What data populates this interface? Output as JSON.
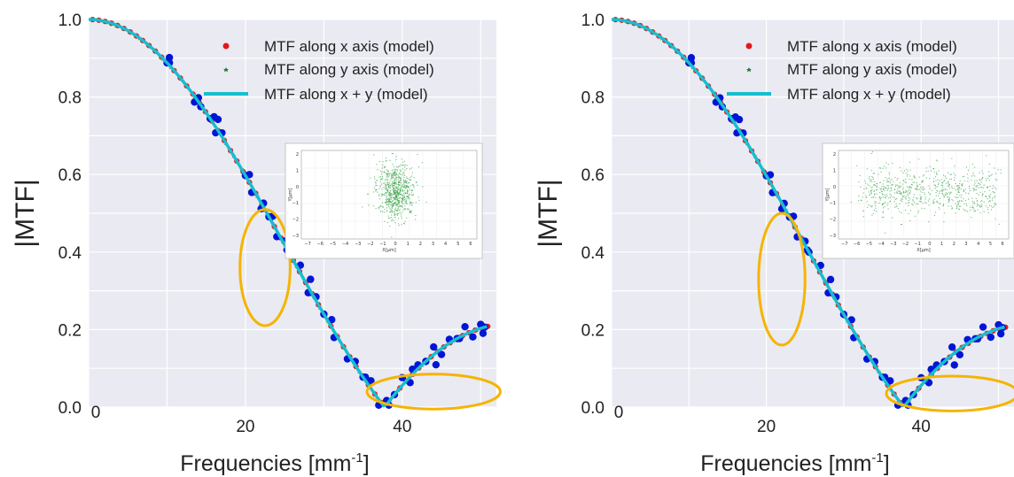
{
  "chart_data": [
    {
      "type": "scatter",
      "title": "",
      "xlabel": "Frequencies [mm",
      "xlabel_sup": "-1",
      "xlabel_end": "]",
      "ylabel": "|MTF|",
      "xlim": [
        0,
        52
      ],
      "ylim": [
        0,
        1.0
      ],
      "xticks": [
        "0",
        "20",
        "40"
      ],
      "yticks": [
        "0.0",
        "0.2",
        "0.4",
        "0.6",
        "0.8",
        "1.0"
      ],
      "grid": true,
      "legend_position": "top-right",
      "legend": [
        "MTF along x axis (model)",
        "MTF along y axis (model)",
        "MTF along x + y (model)"
      ],
      "colors": {
        "x_model": "#e31a1c",
        "y_model": "#1b7a2e",
        "xy_model": "#17becf",
        "measured": "#0015d6",
        "highlight": "#f5b400",
        "background": "#eaeaf2"
      },
      "series": [
        {
          "name": "MTF along x axis (model)",
          "kind": "dots",
          "sigma_x": 0.4,
          "sigma_y": 0.4,
          "mode": "x"
        },
        {
          "name": "MTF along y axis (model)",
          "kind": "stars",
          "sigma_x": 0.4,
          "sigma_y": 0.4,
          "mode": "y"
        },
        {
          "name": "MTF along x + y (model)",
          "kind": "line",
          "sigma_x": 0.4,
          "sigma_y": 0.4,
          "mode": "xy"
        },
        {
          "kind": "measured",
          "mode": "xy",
          "offsets": [
            0.0,
            0.02,
            -0.015,
            0.01
          ]
        }
      ],
      "inset": {
        "type": "scatter",
        "xlabel": "X[μm]",
        "ylabel": "Y[μm]",
        "xticks": [
          "−7",
          "−6",
          "−5",
          "−4",
          "−3",
          "−2",
          "−1",
          "0",
          "1",
          "2",
          "3",
          "4",
          "5",
          "6"
        ],
        "yticks": [
          "2",
          "1",
          "0",
          "−1",
          "−2",
          "−3"
        ],
        "cloud": "round"
      },
      "highlights": [
        {
          "cx": 22.5,
          "cy": 0.36,
          "rx": 3.2,
          "ry": 0.15
        },
        {
          "cx": 44,
          "cy": 0.04,
          "rx": 8.5,
          "ry": 0.045
        }
      ]
    },
    {
      "type": "scatter",
      "title": "",
      "xlabel": "Frequencies [mm",
      "xlabel_sup": "-1",
      "xlabel_end": "]",
      "ylabel": "|MTF|",
      "xlim": [
        0,
        52
      ],
      "ylim": [
        0,
        1.0
      ],
      "xticks": [
        "0",
        "20",
        "40"
      ],
      "yticks": [
        "0.0",
        "0.2",
        "0.4",
        "0.6",
        "0.8",
        "1.0"
      ],
      "grid": true,
      "legend_position": "top-right",
      "legend": [
        "MTF along x axis (model)",
        "MTF along y axis (model)",
        "MTF along x + y (model)"
      ],
      "colors": {
        "x_model": "#e31a1c",
        "y_model": "#1b7a2e",
        "xy_model": "#17becf",
        "measured": "#0015d6",
        "highlight": "#f5b400",
        "background": "#eaeaf2"
      },
      "series": [
        {
          "name": "MTF along x axis (model)",
          "kind": "dots",
          "sigma_x": 0.6,
          "sigma_y": 0.4,
          "mode": "x"
        },
        {
          "name": "MTF along y axis (model)",
          "kind": "stars",
          "sigma_x": 0.6,
          "sigma_y": 0.4,
          "mode": "y"
        },
        {
          "name": "MTF along x + y (model)",
          "kind": "line",
          "sigma_x": 0.6,
          "sigma_y": 0.4,
          "mode": "xy"
        },
        {
          "kind": "measured",
          "mode": "xy",
          "offsets": [
            0.0,
            0.02,
            -0.015,
            0.01
          ]
        }
      ],
      "inset": {
        "type": "scatter",
        "xlabel": "X[μm]",
        "ylabel": "Y[μm]",
        "xticks": [
          "−7",
          "−6",
          "−5",
          "−4",
          "−3",
          "−2",
          "−1",
          "0",
          "1",
          "2",
          "3",
          "4",
          "5",
          "6"
        ],
        "yticks": [
          "2",
          "1",
          "0",
          "−1",
          "−2",
          "−3"
        ],
        "cloud": "elongated"
      },
      "highlights": [
        {
          "cx": 22,
          "cy": 0.33,
          "rx": 3.0,
          "ry": 0.17
        },
        {
          "cx": 44,
          "cy": 0.035,
          "rx": 8.5,
          "ry": 0.045
        }
      ]
    }
  ]
}
